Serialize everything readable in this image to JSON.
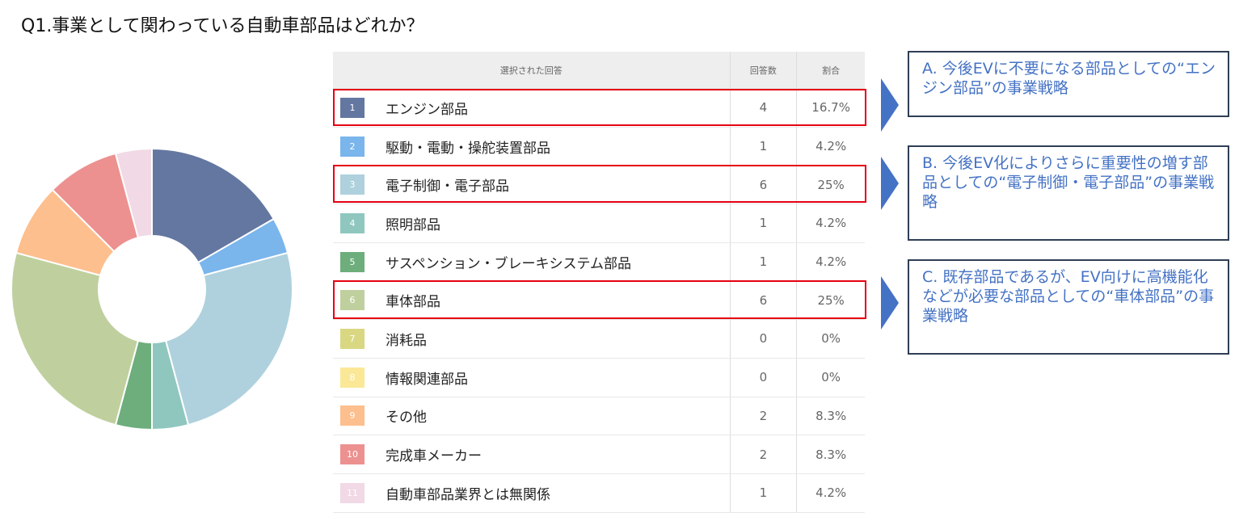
{
  "title": "Q1.事業として関わっている自動車部品はどれか？",
  "table": {
    "headers": {
      "label": "選択された回答",
      "count": "回答数",
      "pct": "割合"
    }
  },
  "colors": [
    "#6477a1",
    "#7ab5ec",
    "#aed1dd",
    "#8fc7bf",
    "#6dae7c",
    "#bfd09e",
    "#d9d782",
    "#fbe897",
    "#fdbf8d",
    "#ec9190",
    "#f1d9e5"
  ],
  "chart_data": {
    "type": "pie",
    "donut": true,
    "categories": [
      "エンジン部品",
      "駆動・電動・操舵装置部品",
      "電子制御・電子部品",
      "照明部品",
      "サスペンション・ブレーキシステム部品",
      "車体部品",
      "消耗品",
      "情報関連部品",
      "その他",
      "完成車メーカー",
      "自動車部品業界とは無関係"
    ],
    "numbers": [
      "1",
      "2",
      "3",
      "4",
      "5",
      "6",
      "7",
      "8",
      "9",
      "10",
      "11"
    ],
    "counts": [
      "4",
      "1",
      "6",
      "1",
      "1",
      "6",
      "0",
      "0",
      "2",
      "2",
      "1"
    ],
    "percents": [
      "16.7%",
      "4.2%",
      "25%",
      "4.2%",
      "4.2%",
      "25%",
      "0%",
      "0%",
      "8.3%",
      "8.3%",
      "4.2%"
    ],
    "values": [
      4,
      1,
      6,
      1,
      1,
      6,
      0,
      0,
      2,
      2,
      1
    ]
  },
  "callouts": [
    {
      "text": "A.  今後EVに不要になる部品としての“エンジン部品”の事業戦略"
    },
    {
      "text": "B.  今後EV化によりさらに重要性の増す部品としての“電子制御・電子部品”の事業戦略"
    },
    {
      "text": "C.  既存部品であるが、EV向けに高機能化などが必要な部品としての“車体部品”の事業戦略"
    }
  ]
}
